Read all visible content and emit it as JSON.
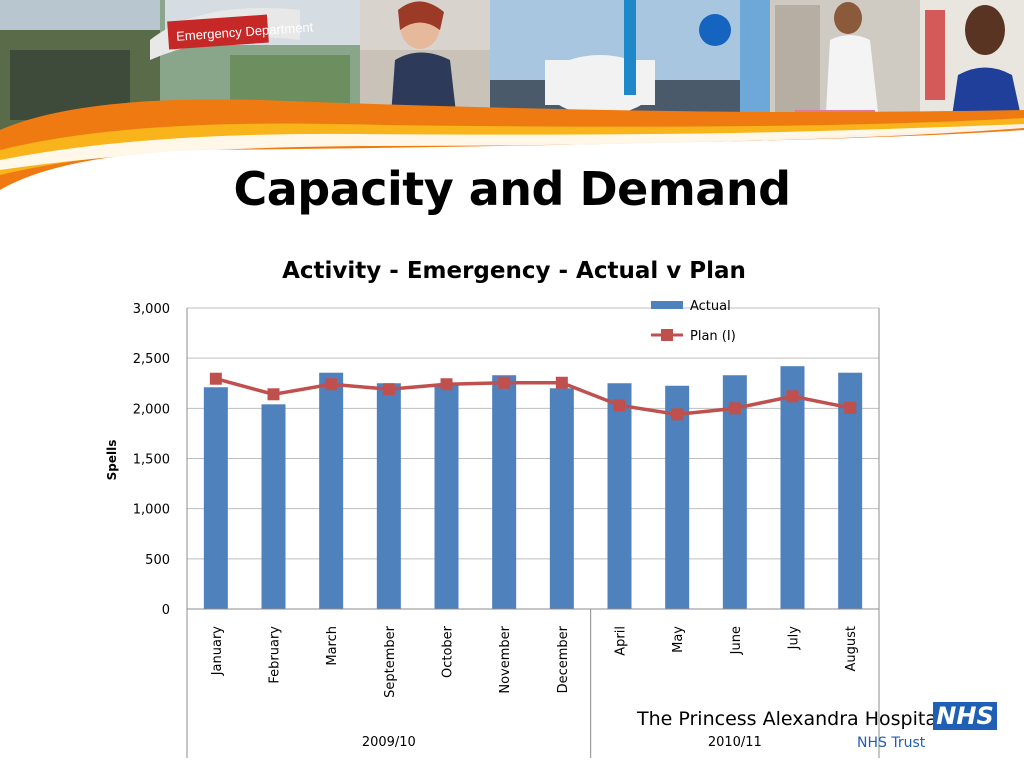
{
  "slide": {
    "title": "Capacity and Demand",
    "banner_sign": "Emergency Department",
    "hospital_name": "The Princess Alexandra Hospital",
    "nhs_logo": "NHS",
    "nhs_trust": "NHS Trust"
  },
  "chart_data": {
    "type": "bar",
    "title": "Activity - Emergency - Actual v Plan",
    "ylabel": "Spells",
    "xlabel": "",
    "ylim": [
      0,
      3000
    ],
    "yticks": [
      "0",
      "500",
      "1,000",
      "1,500",
      "2,000",
      "2,500",
      "3,000"
    ],
    "ytick_values": [
      0,
      500,
      1000,
      1500,
      2000,
      2500,
      3000
    ],
    "grid": true,
    "legend_position": "top-right",
    "categories": [
      "January",
      "February",
      "March",
      "September",
      "October",
      "November",
      "December",
      "April",
      "May",
      "June",
      "July",
      "August"
    ],
    "groups": [
      {
        "label": "2009/10",
        "count": 7
      },
      {
        "label": "2010/11",
        "count": 5
      }
    ],
    "series": [
      {
        "name": "Actual",
        "type": "bar",
        "color": "#4f81bd",
        "values": [
          2210,
          2040,
          2355,
          2250,
          2240,
          2330,
          2200,
          2250,
          2225,
          2330,
          2420,
          2355
        ]
      },
      {
        "name": "Plan (I)",
        "type": "line",
        "color": "#c0504d",
        "values": [
          2295,
          2140,
          2240,
          2190,
          2240,
          2255,
          2255,
          2030,
          1940,
          2000,
          2120,
          2005
        ]
      }
    ]
  }
}
